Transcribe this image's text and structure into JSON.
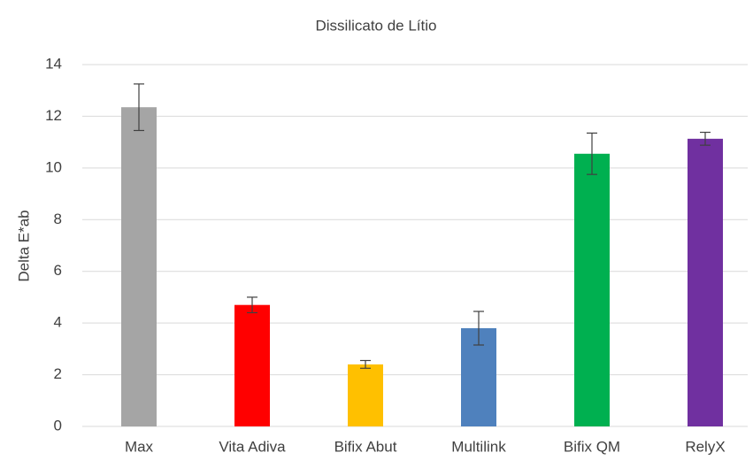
{
  "chart_data": {
    "type": "bar",
    "title": "Dissilicato de Lítio",
    "ylabel": "Delta E*ab",
    "categories": [
      "Max",
      "Vita Adiva",
      "Bifix Abut",
      "Multilink",
      "Bifix QM",
      "RelyX"
    ],
    "values": [
      12.35,
      4.7,
      2.4,
      3.8,
      10.55,
      11.13
    ],
    "errors": [
      0.9,
      0.3,
      0.15,
      0.65,
      0.8,
      0.25
    ],
    "colors": [
      "#a5a5a5",
      "#ff0000",
      "#ffc000",
      "#4f81bd",
      "#00b050",
      "#7030a0"
    ],
    "ylim": [
      0,
      14
    ],
    "yticks": [
      0,
      2,
      4,
      6,
      8,
      10,
      12,
      14
    ],
    "grid": true
  }
}
